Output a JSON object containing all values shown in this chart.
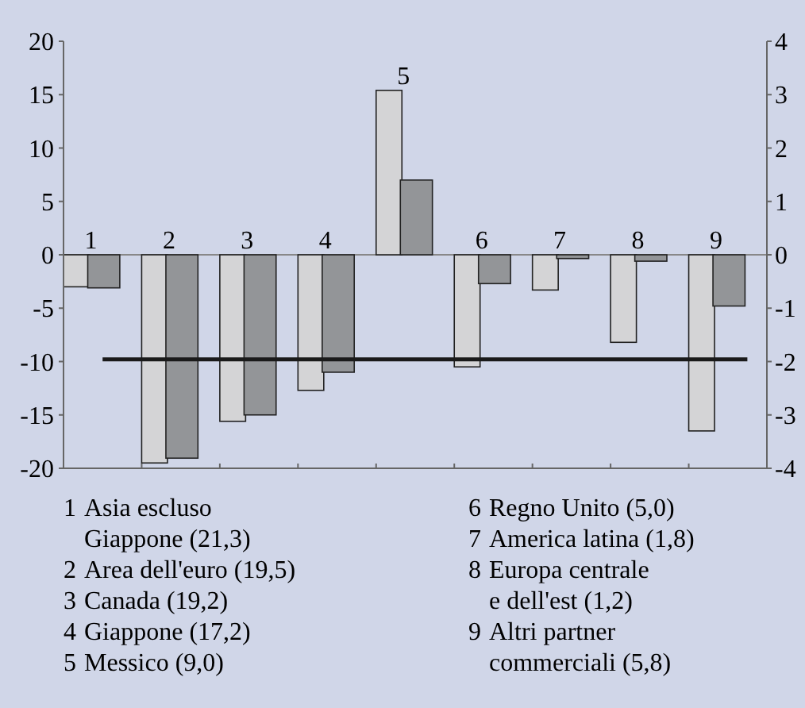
{
  "chart_data": {
    "type": "bar",
    "categories": [
      "1",
      "2",
      "3",
      "4",
      "5",
      "6",
      "7",
      "8",
      "9"
    ],
    "series": [
      {
        "color": "#d4d4d6",
        "values": [
          -3.0,
          -19.5,
          -15.6,
          -12.7,
          15.4,
          -10.5,
          -3.3,
          -8.2,
          -16.5
        ]
      },
      {
        "color": "#939598",
        "axis": "y2",
        "values": [
          -0.62,
          -3.81,
          -3.0,
          -2.2,
          1.4,
          -0.54,
          -0.07,
          -0.12,
          -0.96
        ]
      }
    ],
    "ylim": [
      -20,
      20
    ],
    "yticks": [
      -20,
      -15,
      -10,
      -5,
      0,
      5,
      10,
      15,
      20
    ],
    "y2lim": [
      -4,
      4
    ],
    "y2ticks": [
      -4,
      -3,
      -2,
      -1,
      0,
      1,
      2,
      3,
      4
    ],
    "ref_lines": [
      {
        "axis": "y",
        "value": -9.8,
        "color": "#1a1a1a"
      }
    ],
    "grid": false,
    "annotations": [
      "1  Asia escluso\nGiappone (21,3)",
      "2  Area dell'euro (19,5)",
      "3  Canada (19,2)",
      "4  Giappone (17,2)",
      "5  Messico (9,0)",
      "6  Regno Unito (5,0)",
      "7  America latina (1,8)",
      "8  Europa centrale\ne dell'est (1,2)",
      "9  Altri partner\ncommerciali (5,8)"
    ]
  }
}
